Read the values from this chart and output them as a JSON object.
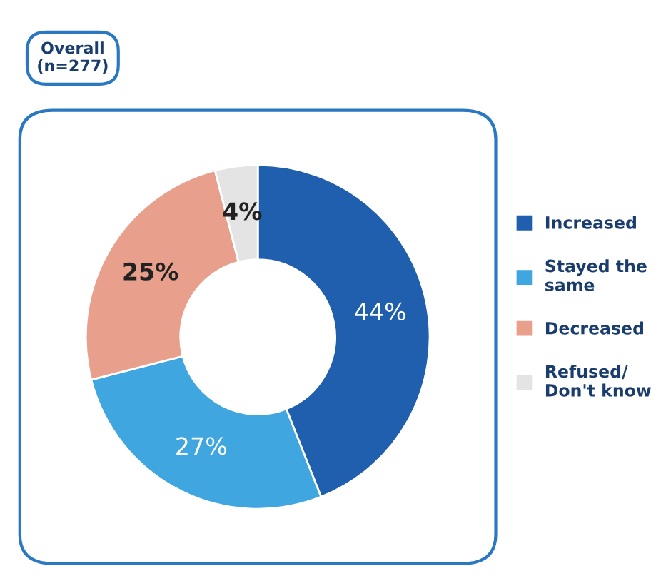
{
  "chart_data": {
    "type": "donut",
    "title": "Overall\n(n=277)",
    "categories": [
      "Increased",
      "Stayed the\nsame",
      "Decreased",
      "Refused/\nDon't know"
    ],
    "values": [
      44,
      27,
      25,
      4
    ],
    "colors": [
      "#1f5fae",
      "#3fa6e0",
      "#e8a08c",
      "#e4e4e4"
    ],
    "value_labels": [
      "44%",
      "27%",
      "25%",
      "4%"
    ],
    "legend": "right"
  }
}
